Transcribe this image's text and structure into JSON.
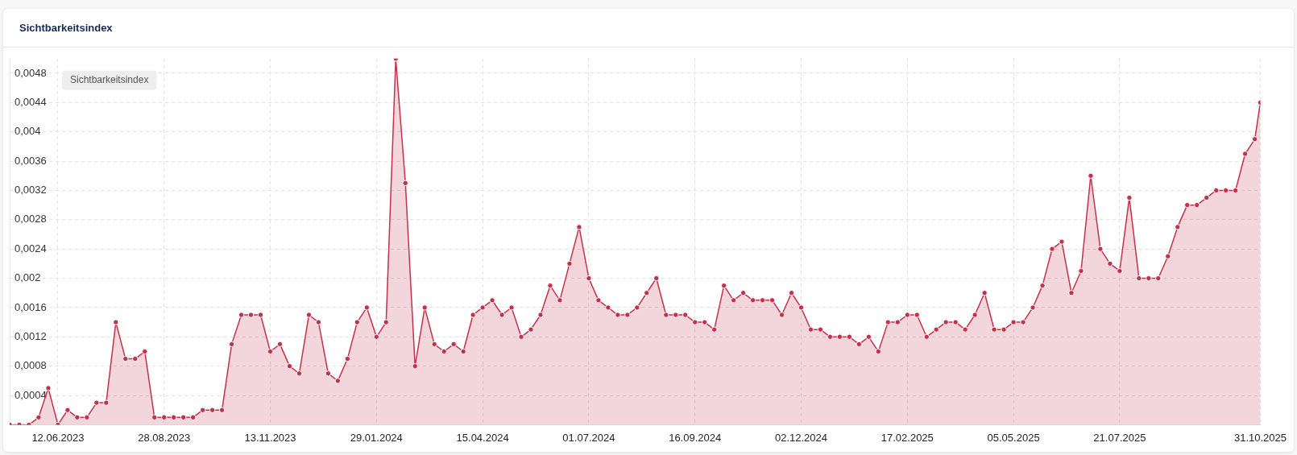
{
  "chart_data": {
    "type": "area",
    "title": "Sichtbarkeitsindex",
    "annotations": [
      "Sichtbarkeitsindex"
    ],
    "x": [
      "2023-05-08",
      "2023-05-15",
      "2023-05-22",
      "2023-05-29",
      "2023-06-05",
      "2023-06-12",
      "2023-06-19",
      "2023-06-26",
      "2023-07-03",
      "2023-07-10",
      "2023-07-17",
      "2023-07-24",
      "2023-07-31",
      "2023-08-07",
      "2023-08-14",
      "2023-08-21",
      "2023-08-28",
      "2023-09-04",
      "2023-09-11",
      "2023-09-18",
      "2023-09-25",
      "2023-10-02",
      "2023-10-09",
      "2023-10-16",
      "2023-10-23",
      "2023-10-30",
      "2023-11-06",
      "2023-11-13",
      "2023-11-20",
      "2023-11-27",
      "2023-12-04",
      "2023-12-11",
      "2023-12-18",
      "2023-12-25",
      "2024-01-01",
      "2024-01-08",
      "2024-01-15",
      "2024-01-22",
      "2024-01-29",
      "2024-02-05",
      "2024-02-12",
      "2024-02-19",
      "2024-02-26",
      "2024-03-04",
      "2024-03-11",
      "2024-03-18",
      "2024-03-25",
      "2024-04-01",
      "2024-04-08",
      "2024-04-15",
      "2024-04-22",
      "2024-04-29",
      "2024-05-06",
      "2024-05-13",
      "2024-05-20",
      "2024-05-27",
      "2024-06-03",
      "2024-06-10",
      "2024-06-17",
      "2024-06-24",
      "2024-07-01",
      "2024-07-08",
      "2024-07-15",
      "2024-07-22",
      "2024-07-29",
      "2024-08-05",
      "2024-08-12",
      "2024-08-19",
      "2024-08-26",
      "2024-09-02",
      "2024-09-09",
      "2024-09-16",
      "2024-09-23",
      "2024-09-30",
      "2024-10-07",
      "2024-10-14",
      "2024-10-21",
      "2024-10-28",
      "2024-11-04",
      "2024-11-11",
      "2024-11-18",
      "2024-11-25",
      "2024-12-02",
      "2024-12-09",
      "2024-12-16",
      "2024-12-23",
      "2024-12-30",
      "2025-01-06",
      "2025-01-13",
      "2025-01-20",
      "2025-01-27",
      "2025-02-03",
      "2025-02-10",
      "2025-02-17",
      "2025-02-24",
      "2025-03-03",
      "2025-03-10",
      "2025-03-17",
      "2025-03-24",
      "2025-03-31",
      "2025-04-07",
      "2025-04-14",
      "2025-04-21",
      "2025-04-28",
      "2025-05-05",
      "2025-05-12",
      "2025-05-19",
      "2025-05-26",
      "2025-06-02",
      "2025-06-09",
      "2025-06-16",
      "2025-06-23",
      "2025-06-30",
      "2025-07-07",
      "2025-07-14",
      "2025-07-21",
      "2025-07-28",
      "2025-08-04",
      "2025-08-11",
      "2025-08-18",
      "2025-08-25",
      "2025-09-01",
      "2025-09-08",
      "2025-09-15",
      "2025-09-22",
      "2025-09-29",
      "2025-10-06",
      "2025-10-13",
      "2025-10-20",
      "2025-10-27",
      "2025-10-31"
    ],
    "series": [
      {
        "color": "#c4314b",
        "values": [
          0,
          0,
          0,
          0.0001,
          0.0005,
          0,
          0.0002,
          0.0001,
          0.0001,
          0.0003,
          0.0003,
          0.0014,
          0.0009,
          0.0009,
          0.001,
          0.0001,
          0.0001,
          0.0001,
          0.0001,
          0.0001,
          0.0002,
          0.0002,
          0.0002,
          0.0011,
          0.0015,
          0.0015,
          0.0015,
          0.001,
          0.0011,
          0.0008,
          0.0007,
          0.0015,
          0.0014,
          0.0007,
          0.0006,
          0.0009,
          0.0014,
          0.0016,
          0.0012,
          0.0014,
          0.005,
          0.0033,
          0.0008,
          0.0016,
          0.0011,
          0.001,
          0.0011,
          0.001,
          0.0015,
          0.0016,
          0.0017,
          0.0015,
          0.0016,
          0.0012,
          0.0013,
          0.0015,
          0.0019,
          0.0017,
          0.0022,
          0.0027,
          0.002,
          0.0017,
          0.0016,
          0.0015,
          0.0015,
          0.0016,
          0.0018,
          0.002,
          0.0015,
          0.0015,
          0.0015,
          0.0014,
          0.0014,
          0.0013,
          0.0019,
          0.0017,
          0.0018,
          0.0017,
          0.0017,
          0.0017,
          0.0015,
          0.0018,
          0.0016,
          0.0013,
          0.0013,
          0.0012,
          0.0012,
          0.0012,
          0.0011,
          0.0012,
          0.001,
          0.0014,
          0.0014,
          0.0015,
          0.0015,
          0.0012,
          0.0013,
          0.0014,
          0.0014,
          0.0013,
          0.0015,
          0.0018,
          0.0013,
          0.0013,
          0.0014,
          0.0014,
          0.0016,
          0.0019,
          0.0024,
          0.0025,
          0.0018,
          0.0021,
          0.0034,
          0.0024,
          0.0022,
          0.0021,
          0.0031,
          0.002,
          0.002,
          0.002,
          0.0023,
          0.0027,
          0.003,
          0.003,
          0.0031,
          0.0032,
          0.0032,
          0.0032,
          0.0037,
          0.0039,
          0.0044
        ]
      }
    ],
    "xlim": [
      "2023-05-08",
      "2025-10-31"
    ],
    "xticks": [
      {
        "value": "2023-06-12",
        "label": "12.06.2023"
      },
      {
        "value": "2023-08-28",
        "label": "28.08.2023"
      },
      {
        "value": "2023-11-13",
        "label": "13.11.2023"
      },
      {
        "value": "2024-01-29",
        "label": "29.01.2024"
      },
      {
        "value": "2024-04-15",
        "label": "15.04.2024"
      },
      {
        "value": "2024-07-01",
        "label": "01.07.2024"
      },
      {
        "value": "2024-09-16",
        "label": "16.09.2024"
      },
      {
        "value": "2024-12-02",
        "label": "02.12.2024"
      },
      {
        "value": "2025-02-17",
        "label": "17.02.2025"
      },
      {
        "value": "2025-05-05",
        "label": "05.05.2025"
      },
      {
        "value": "2025-07-21",
        "label": "21.07.2025"
      },
      {
        "value": "2025-10-31",
        "label": "31.10.2025"
      }
    ],
    "ylim": [
      0,
      0.005
    ],
    "yticks": [
      {
        "value": 0.0004,
        "label": "0,0004"
      },
      {
        "value": 0.0008,
        "label": "0,0008"
      },
      {
        "value": 0.0012,
        "label": "0,0012"
      },
      {
        "value": 0.0016,
        "label": "0,0016"
      },
      {
        "value": 0.002,
        "label": "0,002"
      },
      {
        "value": 0.0024,
        "label": "0,0024"
      },
      {
        "value": 0.0028,
        "label": "0,0028"
      },
      {
        "value": 0.0032,
        "label": "0,0032"
      },
      {
        "value": 0.0036,
        "label": "0,0036"
      },
      {
        "value": 0.004,
        "label": "0,004"
      },
      {
        "value": 0.0044,
        "label": "0,0044"
      },
      {
        "value": 0.0048,
        "label": "0,0048"
      }
    ],
    "grid": true,
    "legend": false,
    "marker": "circle"
  }
}
